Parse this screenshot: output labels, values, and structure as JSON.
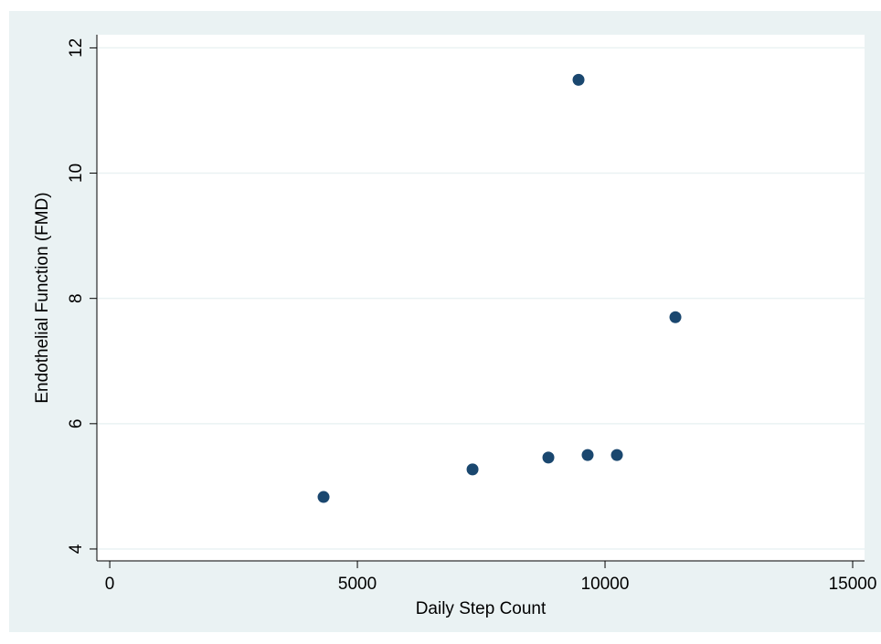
{
  "chart_data": {
    "type": "scatter",
    "xlabel": "Daily Step Count",
    "ylabel": "Endothelial Function (FMD)",
    "x": [
      4317,
      7325,
      8856,
      9649,
      10240,
      9465,
      11421
    ],
    "values": [
      4.83,
      5.27,
      5.46,
      5.5,
      5.5,
      11.49,
      7.7
    ],
    "color": "#1a476f",
    "xlim": [
      -260,
      15240
    ],
    "ylim": [
      3.81,
      12.21
    ],
    "xticks": [
      0,
      5000,
      10000,
      15000
    ],
    "yticks": [
      4,
      6,
      8,
      10,
      12
    ],
    "grid": true
  }
}
